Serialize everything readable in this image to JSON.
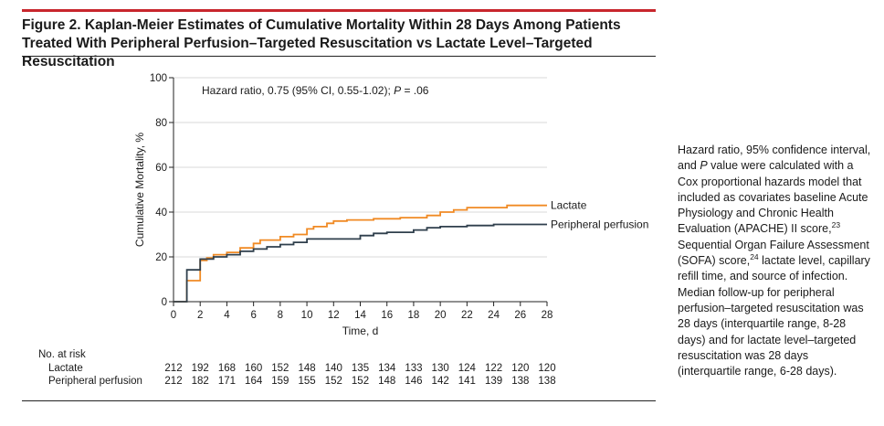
{
  "figure": {
    "title": "Figure 2. Kaplan-Meier Estimates of Cumulative Mortality Within 28 Days Among Patients Treated With Peripheral Perfusion–Targeted Resuscitation vs Lactate Level–Targeted Resuscitation",
    "hazard_text": "Hazard ratio, 0.75 (95% CI, 0.55-1.02); ",
    "p_italic": "P",
    "p_value_text": " = .06",
    "footnote": {
      "part1": "Hazard ratio, 95% confidence interval, and ",
      "p_italic": "P",
      "part2": " value were calculated with a Cox proportional hazards model that included as covariates baseline Acute Physiology and Chronic Health Evaluation (APACHE) II score,",
      "ref1": "23",
      "part3": " Sequential Organ Failure Assessment (SOFA) score,",
      "ref2": "24",
      "part4": " lactate level, capillary refill time, and source of infection. Median follow-up for peripheral perfusion–targeted resuscitation was 28 days (interquartile range, 8-28 days) and for lactate level–targeted resuscitation was 28 days (interquartile range, 6-28 days)."
    }
  },
  "chart_data": {
    "type": "line",
    "step": true,
    "xlabel": "Time, d",
    "ylabel": "Cumulative Mortality, %",
    "xlim": [
      0,
      28
    ],
    "ylim": [
      0,
      100
    ],
    "x_ticks": [
      0,
      2,
      4,
      6,
      8,
      10,
      12,
      14,
      16,
      18,
      20,
      22,
      24,
      26,
      28
    ],
    "y_ticks": [
      0,
      20,
      40,
      60,
      80,
      100
    ],
    "grid": "horizontal",
    "series": [
      {
        "name": "Lactate",
        "color": "#f08a24",
        "points": [
          [
            0,
            0
          ],
          [
            1,
            0
          ],
          [
            1,
            9.4
          ],
          [
            2,
            9.4
          ],
          [
            2,
            18.4
          ],
          [
            2.5,
            18.4
          ],
          [
            2.5,
            19.5
          ],
          [
            3,
            19.5
          ],
          [
            3,
            21
          ],
          [
            4,
            21
          ],
          [
            4,
            22
          ],
          [
            5,
            22
          ],
          [
            5,
            24
          ],
          [
            6,
            24
          ],
          [
            6,
            26
          ],
          [
            6.5,
            26
          ],
          [
            6.5,
            27.5
          ],
          [
            8,
            27.5
          ],
          [
            8,
            29
          ],
          [
            9,
            29
          ],
          [
            9,
            30
          ],
          [
            10,
            30
          ],
          [
            10,
            32.5
          ],
          [
            10.5,
            32.5
          ],
          [
            10.5,
            33.5
          ],
          [
            11.5,
            33.5
          ],
          [
            11.5,
            35
          ],
          [
            12,
            35
          ],
          [
            12,
            36
          ],
          [
            13,
            36
          ],
          [
            13,
            36.5
          ],
          [
            15,
            36.5
          ],
          [
            15,
            37
          ],
          [
            17,
            37
          ],
          [
            17,
            37.5
          ],
          [
            19,
            37.5
          ],
          [
            19,
            38.5
          ],
          [
            20,
            38.5
          ],
          [
            20,
            40
          ],
          [
            21,
            40
          ],
          [
            21,
            41
          ],
          [
            22,
            41
          ],
          [
            22,
            42
          ],
          [
            25,
            42
          ],
          [
            25,
            43
          ],
          [
            28,
            43
          ]
        ]
      },
      {
        "name": "Peripheral perfusion",
        "color": "#2f3f4c",
        "points": [
          [
            0,
            0
          ],
          [
            1,
            0
          ],
          [
            1,
            14.2
          ],
          [
            2,
            14.2
          ],
          [
            2,
            19
          ],
          [
            3,
            19
          ],
          [
            3,
            20
          ],
          [
            4,
            20
          ],
          [
            4,
            21
          ],
          [
            5,
            21
          ],
          [
            5,
            22.5
          ],
          [
            6,
            22.5
          ],
          [
            6,
            23.5
          ],
          [
            7,
            23.5
          ],
          [
            7,
            24.5
          ],
          [
            8,
            24.5
          ],
          [
            8,
            25.5
          ],
          [
            9,
            25.5
          ],
          [
            9,
            26.5
          ],
          [
            10,
            26.5
          ],
          [
            10,
            28
          ],
          [
            14,
            28
          ],
          [
            14,
            29.5
          ],
          [
            15,
            29.5
          ],
          [
            15,
            30.5
          ],
          [
            16,
            30.5
          ],
          [
            16,
            31
          ],
          [
            18,
            31
          ],
          [
            18,
            32
          ],
          [
            19,
            32
          ],
          [
            19,
            33
          ],
          [
            20,
            33
          ],
          [
            20,
            33.5
          ],
          [
            22,
            33.5
          ],
          [
            22,
            34
          ],
          [
            24,
            34
          ],
          [
            24,
            34.5
          ],
          [
            28,
            34.5
          ]
        ]
      }
    ],
    "at_risk": {
      "title": "No. at risk",
      "days": [
        0,
        2,
        4,
        6,
        8,
        10,
        12,
        14,
        16,
        18,
        20,
        22,
        24,
        26,
        28
      ],
      "rows": [
        {
          "label": "Lactate",
          "values": [
            212,
            192,
            168,
            160,
            152,
            148,
            140,
            135,
            134,
            133,
            130,
            124,
            122,
            120,
            120
          ]
        },
        {
          "label": "Peripheral perfusion",
          "values": [
            212,
            182,
            171,
            164,
            159,
            155,
            152,
            152,
            148,
            146,
            142,
            141,
            139,
            138,
            138
          ]
        }
      ]
    }
  }
}
